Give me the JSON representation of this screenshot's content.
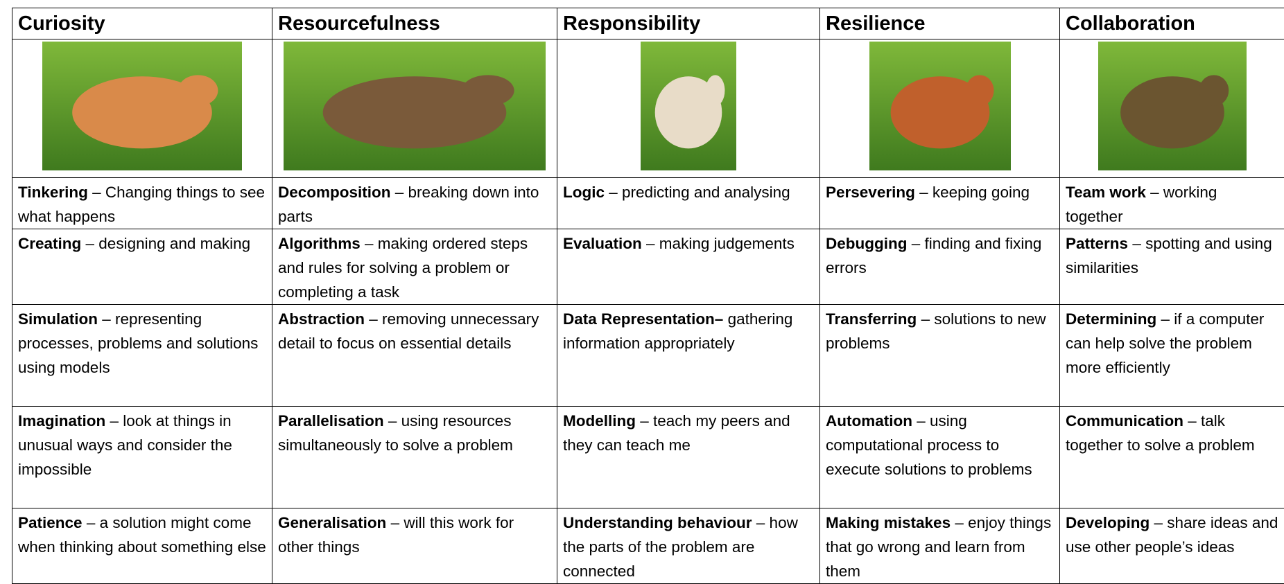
{
  "table": {
    "headers": [
      "Curiosity",
      "Resourcefulness",
      "Responsibility",
      "Resilience",
      "Collaboration"
    ],
    "rows": [
      [
        {
          "term": "Tinkering",
          "desc": "– Changing things to see what happens"
        },
        {
          "term": "Decomposition",
          "desc": "– breaking down into parts"
        },
        {
          "term": "Logic",
          "desc": "– predicting and analysing"
        },
        {
          "term": "Persevering",
          "desc": "– keeping going"
        },
        {
          "term": "Team work",
          "desc": "– working together"
        }
      ],
      [
        {
          "term": "Creating",
          "desc": "– designing and making"
        },
        {
          "term": "Algorithms",
          "desc": "– making ordered steps and rules for solving a problem or completing a task"
        },
        {
          "term": "Evaluation",
          "desc": "– making judgements"
        },
        {
          "term": "Debugging",
          "desc": "– finding and fixing errors"
        },
        {
          "term": "Patterns",
          "desc": "– spotting and using similarities"
        }
      ],
      [
        {
          "term": "Simulation",
          "desc": "– representing processes, problems and solutions using models"
        },
        {
          "term": "Abstraction",
          "desc": "– removing unnecessary detail to focus on essential details"
        },
        {
          "term": "Data Representation–",
          "desc": "gathering information appropriately"
        },
        {
          "term": "Transferring",
          "desc": "– solutions to new problems"
        },
        {
          "term": "Determining",
          "desc": "– if a computer can help solve the problem more efficiently"
        }
      ],
      [
        {
          "term": "Imagination",
          "desc": "– look at things in unusual ways and consider the impossible"
        },
        {
          "term": "Parallelisation",
          "desc": "– using resources simultaneously to solve a problem"
        },
        {
          "term": "Modelling",
          "desc": "– teach my peers and they can teach me"
        },
        {
          "term": "Automation",
          "desc": "– using computational process to execute solutions to problems"
        },
        {
          "term": "Communication",
          "desc": "– talk together to solve a problem"
        }
      ],
      [
        {
          "term": "Patience",
          "desc": "– a solution might come when thinking about something else"
        },
        {
          "term": "Generalisation",
          "desc": "– will this work for other things"
        },
        {
          "term": "Understanding behaviour",
          "desc": "– how the parts of the problem are connected"
        },
        {
          "term": "Making mistakes",
          "desc": "– enjoy things that go wrong and learn from them"
        },
        {
          "term": "Developing",
          "desc": "– share ideas and use other people’s ideas"
        }
      ]
    ]
  }
}
